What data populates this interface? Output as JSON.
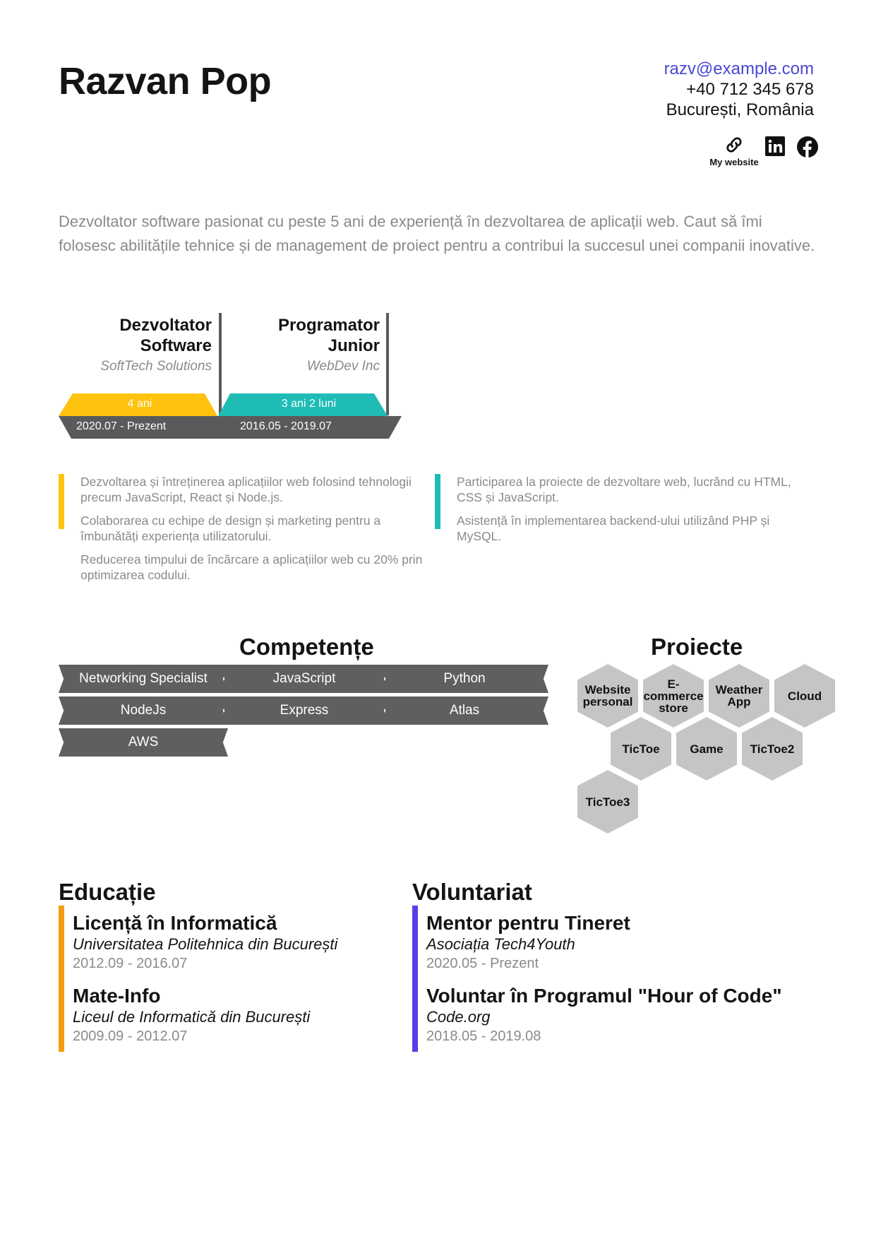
{
  "header": {
    "name": "Razvan Pop",
    "email": "razv@example.com",
    "phone": "+40 712 345 678",
    "location": "București, România",
    "website_label": "My website",
    "icons": [
      "link-icon",
      "linkedin-icon",
      "facebook-icon"
    ]
  },
  "summary": "Dezvoltator software pasionat cu peste 5 ani de experiență în dezvoltarea de aplicații web. Caut să îmi folosesc abilitățile tehnice și de management de proiect pentru a contribui la succesul unei companii inovative.",
  "experience": [
    {
      "title": "Dezvoltator Software",
      "company": "SoftTech Solutions",
      "duration": "4 ani",
      "period": "2020.07 - Prezent",
      "color": "#ffc20e",
      "bullets": [
        "Dezvoltarea și întreținerea aplicațiilor web folosind tehnologii precum JavaScript, React și Node.js.",
        "Colaborarea cu echipe de design și marketing pentru a îmbunătăți experiența utilizatorului.",
        "Reducerea timpului de încărcare a aplicațiilor web cu 20% prin optimizarea codului."
      ]
    },
    {
      "title": "Programator Junior",
      "company": "WebDev Inc",
      "duration": "3 ani  2 luni",
      "period": "2016.05 - 2019.07",
      "color": "#1fbcb5",
      "bullets": [
        "Participarea la proiecte de dezvoltare web, lucrând cu HTML, CSS și JavaScript.",
        "Asistență în implementarea backend-ului utilizând PHP și MySQL."
      ]
    }
  ],
  "skills": {
    "title": "Competențe",
    "items": [
      "Networking Specialist",
      "JavaScript",
      "Python",
      "NodeJs",
      "Express",
      "Atlas",
      "AWS"
    ]
  },
  "projects": {
    "title": "Proiecte",
    "items": [
      "Website personal",
      "E-commerce store",
      "Weather App",
      "Cloud",
      "TicToe",
      "Game",
      "TicToe2",
      "TicToe3"
    ]
  },
  "education": {
    "title": "Educație",
    "color": "#f29d0c",
    "items": [
      {
        "title": "Licență în Informatică",
        "org": "Universitatea Politehnica din București",
        "period": "2012.09 - 2016.07"
      },
      {
        "title": "Mate-Info",
        "org": "Liceul de Informatică din București",
        "period": "2009.09 - 2012.07"
      }
    ]
  },
  "volunteering": {
    "title": "Voluntariat",
    "color": "#5a3de8",
    "items": [
      {
        "title": "Mentor pentru Tineret",
        "org": "Asociația Tech4Youth",
        "period": "2020.05 - Prezent"
      },
      {
        "title": "Voluntar în Programul \"Hour of Code\"",
        "org": "Code.org",
        "period": "2018.05 - 2019.08"
      }
    ]
  }
}
